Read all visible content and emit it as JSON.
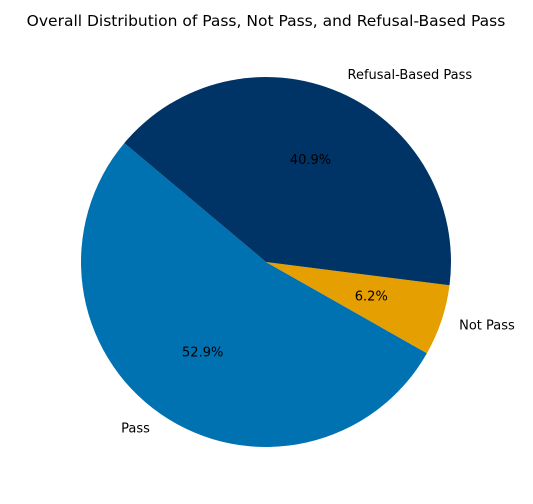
{
  "chart_data": {
    "type": "pie",
    "title": "Overall Distribution of Pass, Not Pass, and Refusal-Based Pass",
    "categories": [
      "Pass",
      "Not Pass",
      "Refusal-Based Pass"
    ],
    "values": [
      52.9,
      6.2,
      40.9
    ],
    "value_labels": [
      "52.9%",
      "6.2%",
      "40.9%"
    ],
    "colors": [
      "#0072b2",
      "#e69f00",
      "#003366"
    ],
    "start_angle_deg": 140,
    "direction": "counterclockwise",
    "legend": "none"
  }
}
